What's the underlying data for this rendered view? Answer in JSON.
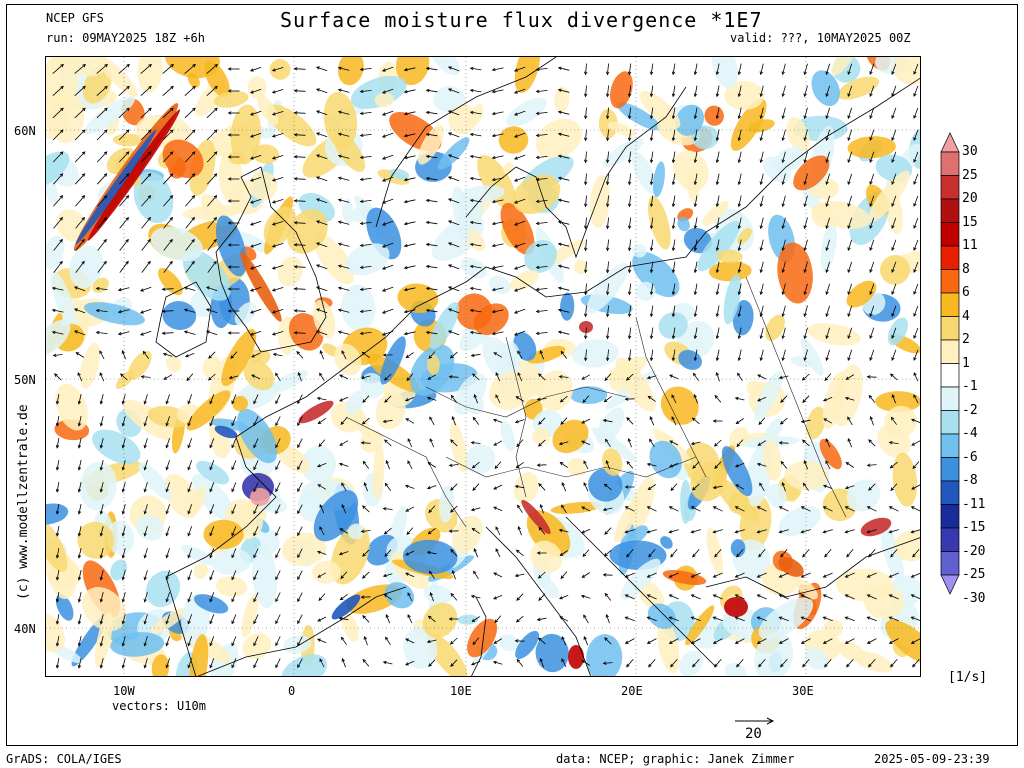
{
  "header": {
    "model": "NCEP GFS",
    "title": "Surface moisture flux divergence *1E7",
    "run": "run: 09MAY2025 18Z +6h",
    "valid": "valid: ???, 10MAY2025 00Z"
  },
  "watermark": "(c) www.modellzentrale.de",
  "vectors_label": "vectors: U10m",
  "vector_scale": "20",
  "units": "[1/s]",
  "footer": {
    "grads": "GrADS: COLA/IGES",
    "credit": "data: NCEP; graphic: Janek Zimmer",
    "timestamp": "2025-05-09-23:39"
  },
  "axes": {
    "lat_labels": [
      "60N",
      "50N",
      "40N"
    ],
    "lon_labels": [
      "10W",
      "0",
      "10E",
      "20E",
      "30E"
    ]
  },
  "colorbar": {
    "levels": [
      "30",
      "25",
      "20",
      "15",
      "11",
      "8",
      "6",
      "4",
      "2",
      "1",
      "-1",
      "-2",
      "-4",
      "-6",
      "-8",
      "-11",
      "-15",
      "-20",
      "-25",
      "-30"
    ],
    "colors": [
      "#f0a0a0",
      "#e07070",
      "#c83030",
      "#b01010",
      "#c00000",
      "#e82000",
      "#f86810",
      "#f8b820",
      "#f8d870",
      "#fff0c0",
      "#ffffff",
      "#dff4f8",
      "#a8e0f0",
      "#70c0f0",
      "#3c90e0",
      "#2058c0",
      "#1a2c9c",
      "#3838b0",
      "#6060d0",
      "#a090f0"
    ]
  }
}
